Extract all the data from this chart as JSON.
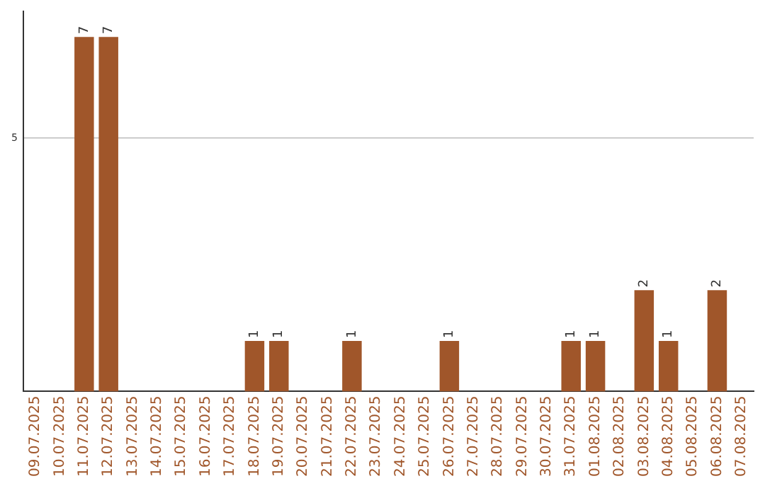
{
  "chart_data": {
    "type": "bar",
    "categories": [
      "09.07.2025",
      "10.07.2025",
      "11.07.2025",
      "12.07.2025",
      "13.07.2025",
      "14.07.2025",
      "15.07.2025",
      "16.07.2025",
      "17.07.2025",
      "18.07.2025",
      "19.07.2025",
      "20.07.2025",
      "21.07.2025",
      "22.07.2025",
      "23.07.2025",
      "24.07.2025",
      "25.07.2025",
      "26.07.2025",
      "27.07.2025",
      "28.07.2025",
      "29.07.2025",
      "30.07.2025",
      "31.07.2025",
      "01.08.2025",
      "02.08.2025",
      "03.08.2025",
      "04.08.2025",
      "05.08.2025",
      "06.08.2025",
      "07.08.2025"
    ],
    "values": [
      null,
      null,
      7,
      7,
      null,
      null,
      null,
      null,
      null,
      1,
      1,
      null,
      null,
      1,
      null,
      null,
      null,
      1,
      null,
      null,
      null,
      null,
      1,
      1,
      null,
      2,
      1,
      null,
      2,
      null
    ],
    "color": "#a0562a",
    "ylim": [
      0,
      7.5
    ],
    "yticks": [
      5
    ],
    "grid": "y",
    "data_labels": true,
    "legend": false
  }
}
